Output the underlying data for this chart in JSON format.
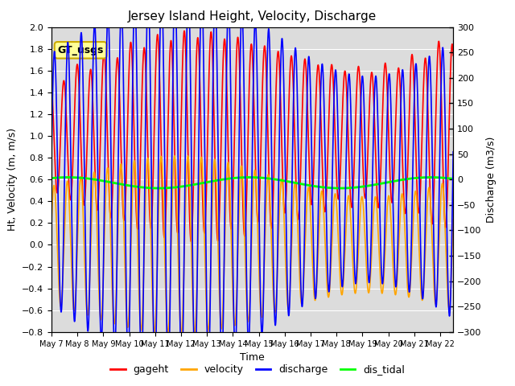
{
  "title": "Jersey Island Height, Velocity, Discharge",
  "xlabel": "Time",
  "ylabel_left": "Ht, Velocity (m, m/s)",
  "ylabel_right": "Discharge (m3/s)",
  "ylim_left": [
    -0.8,
    2.0
  ],
  "ylim_right": [
    -300,
    300
  ],
  "yticks_left": [
    -0.8,
    -0.6,
    -0.4,
    -0.2,
    0.0,
    0.2,
    0.4,
    0.6,
    0.8,
    1.0,
    1.2,
    1.4,
    1.6,
    1.8,
    2.0
  ],
  "yticks_right": [
    -300,
    -250,
    -200,
    -150,
    -100,
    -50,
    0,
    50,
    100,
    150,
    200,
    250,
    300
  ],
  "xtick_labels": [
    "May 7",
    "May 8",
    "May 9",
    "May 10",
    "May 11",
    "May 12",
    "May 13",
    "May 14",
    "May 15",
    "May 16",
    "May 17",
    "May 18",
    "May 19",
    "May 20",
    "May 21",
    "May 22"
  ],
  "legend_labels": [
    "gageht",
    "velocity",
    "discharge",
    "dis_tidal"
  ],
  "line_colors": {
    "gageht": "red",
    "velocity": "orange",
    "discharge": "blue",
    "dis_tidal": "lime"
  },
  "line_widths": {
    "gageht": 1.2,
    "velocity": 1.2,
    "discharge": 1.2,
    "dis_tidal": 2.0
  },
  "annotation_text": "GT_usgs",
  "annotation_bg": "#FFFF99",
  "annotation_border": "#CCAA00",
  "bg_color": "#DCDCDC",
  "n_days": 15.5,
  "tidal_period_hours": 12.4,
  "gageht_base": 1.0,
  "gageht_amp": 0.6,
  "gageht_amp_growth": 0.35,
  "velocity_amp": 0.63,
  "discharge_amp": 290,
  "dis_tidal_base": 0.57,
  "dis_tidal_amp": 0.05,
  "dis_tidal_period_days": 7.0,
  "spring_neap_period_days": 14.76,
  "spring_neap_amp": 0.3
}
